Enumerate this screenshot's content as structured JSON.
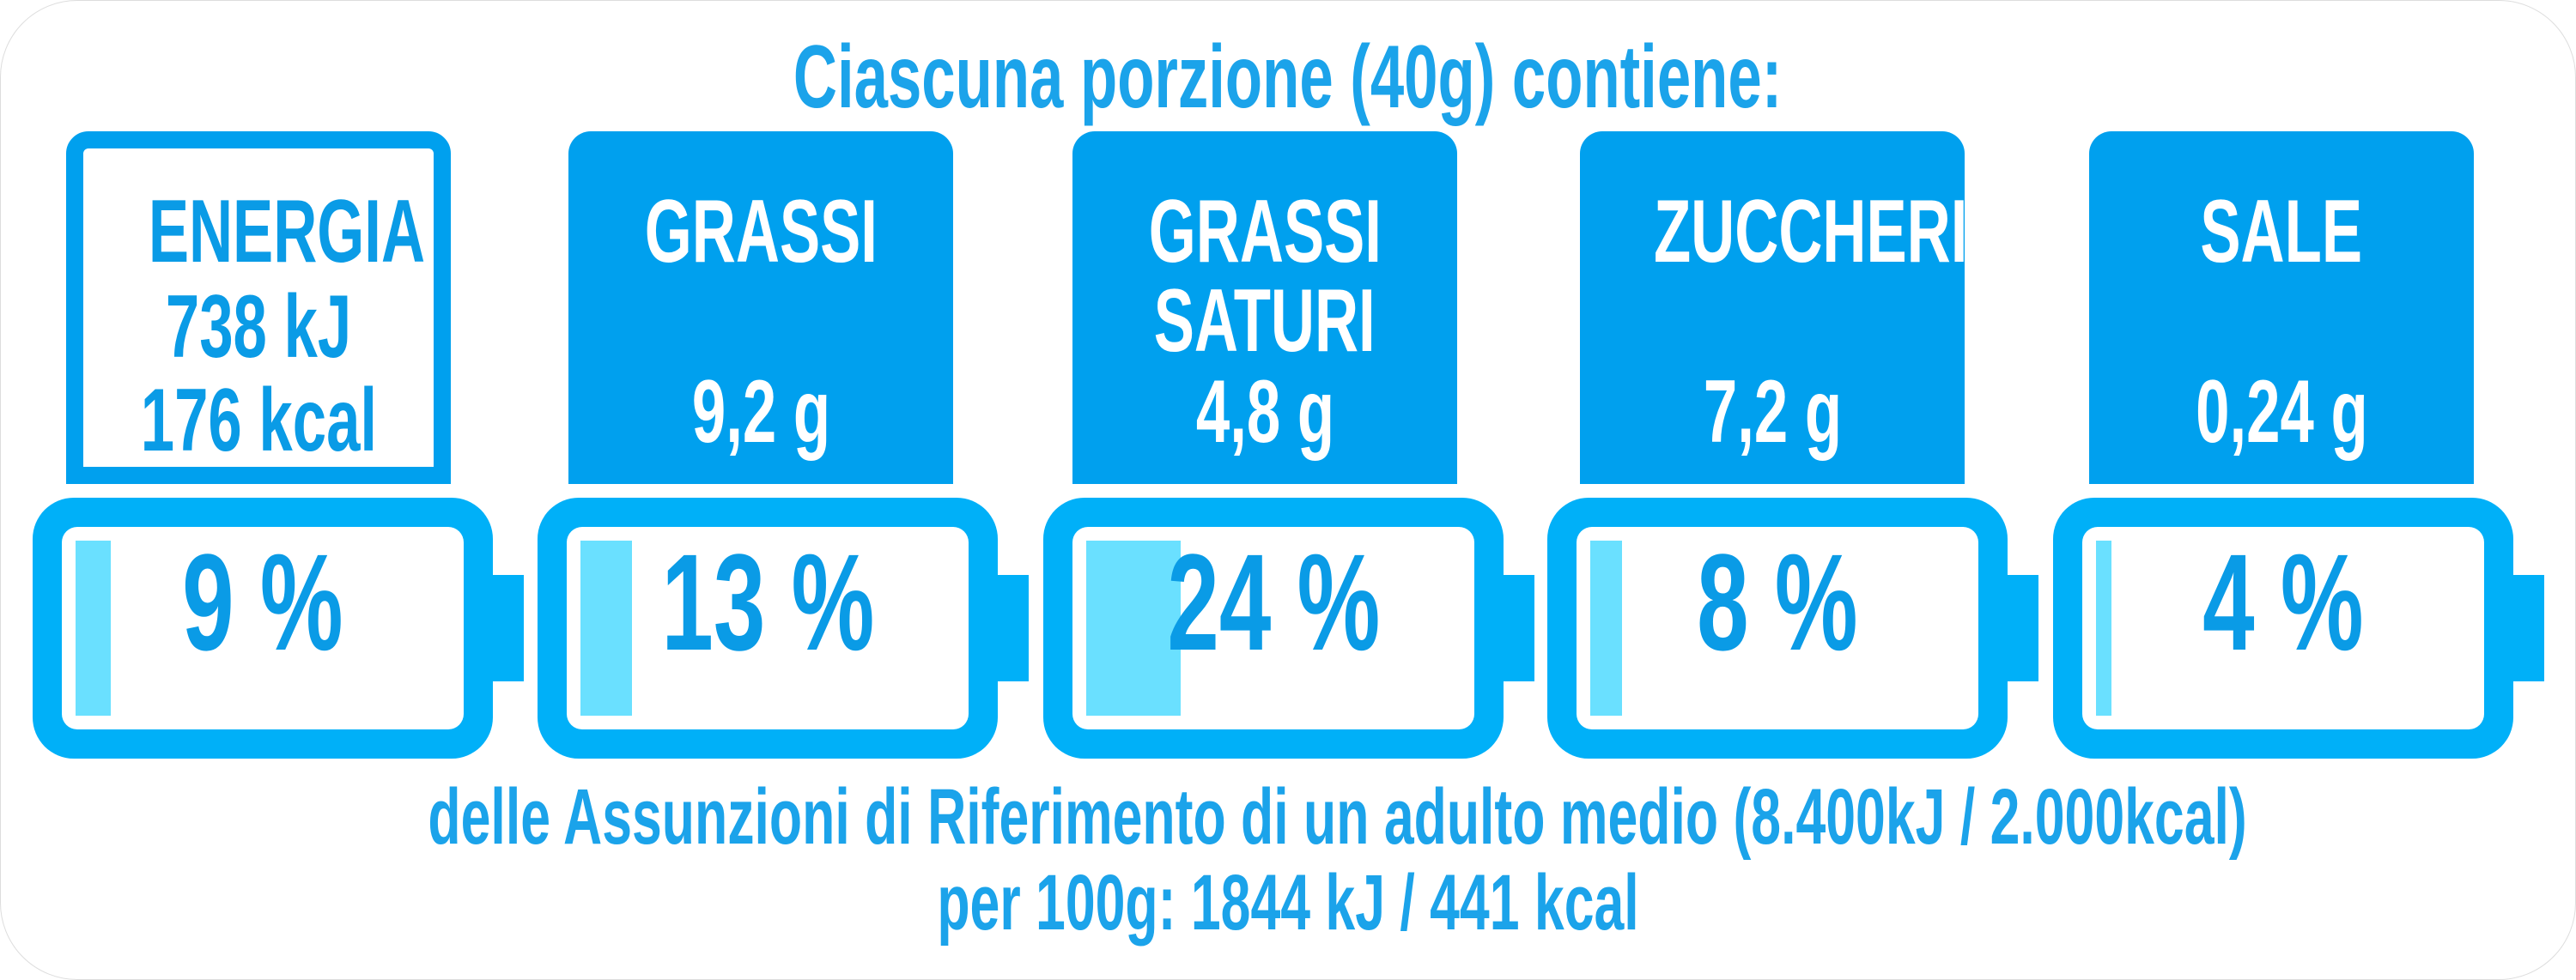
{
  "title": "Ciascuna porzione (40g) contiene:",
  "colors": {
    "box": "#00a0ee",
    "battery": "#00b0f8",
    "battery_fill": "#6ae0ff",
    "text": "#1ba3ea"
  },
  "nutrients": [
    {
      "label_lines": [
        "ENERGIA",
        "738 kJ",
        "176 kcal"
      ],
      "style": "outline",
      "percent_label": "9 %",
      "percent": 9
    },
    {
      "label_lines": [
        "GRASSI"
      ],
      "value": "9,2 g",
      "style": "filled",
      "percent_label": "13 %",
      "percent": 13
    },
    {
      "label_lines": [
        "GRASSI",
        "SATURI"
      ],
      "value": "4,8 g",
      "style": "filled",
      "percent_label": "24 %",
      "percent": 24
    },
    {
      "label_lines": [
        "ZUCCHERI"
      ],
      "value": "7,2 g",
      "style": "filled",
      "percent_label": "8 %",
      "percent": 8
    },
    {
      "label_lines": [
        "SALE"
      ],
      "value": "0,24 g",
      "style": "filled",
      "percent_label": "4 %",
      "percent": 4
    }
  ],
  "footer": {
    "line1": "delle Assunzioni di Riferimento di un adulto medio (8.400kJ / 2.000kcal)",
    "line2": "per 100g: 1844 kJ / 441 kcal"
  }
}
